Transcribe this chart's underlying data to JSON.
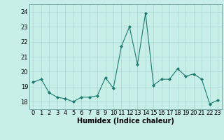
{
  "x": [
    0,
    1,
    2,
    3,
    4,
    5,
    6,
    7,
    8,
    9,
    10,
    11,
    12,
    13,
    14,
    15,
    16,
    17,
    18,
    19,
    20,
    21,
    22,
    23
  ],
  "y": [
    19.3,
    19.5,
    18.6,
    18.3,
    18.2,
    18.0,
    18.3,
    18.3,
    18.4,
    19.6,
    18.9,
    21.7,
    23.0,
    20.5,
    23.9,
    19.1,
    19.5,
    19.5,
    20.2,
    19.7,
    19.85,
    19.5,
    17.85,
    18.1
  ],
  "xlabel": "Humidex (Indice chaleur)",
  "ylim": [
    17.5,
    24.5
  ],
  "xlim": [
    -0.5,
    23.5
  ],
  "yticks": [
    18,
    19,
    20,
    21,
    22,
    23,
    24
  ],
  "xticks": [
    0,
    1,
    2,
    3,
    4,
    5,
    6,
    7,
    8,
    9,
    10,
    11,
    12,
    13,
    14,
    15,
    16,
    17,
    18,
    19,
    20,
    21,
    22,
    23
  ],
  "line_color": "#1a7a6e",
  "marker_color": "#1a7a6e",
  "bg_color": "#c8eee8",
  "grid_color": "#a8d8d0",
  "label_fontsize": 7,
  "tick_fontsize": 6
}
